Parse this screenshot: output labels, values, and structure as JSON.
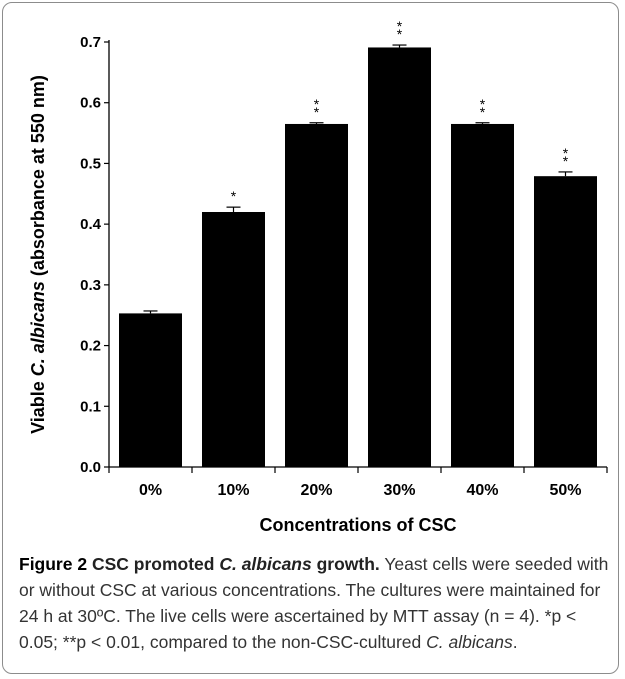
{
  "chart_data": {
    "type": "bar",
    "ylabel_parts": [
      "Viable ",
      "C. albicans",
      " (absorbance at 550 nm)"
    ],
    "xlabel": "Concentrations of CSC",
    "categories": [
      "0%",
      "10%",
      "20%",
      "30%",
      "40%",
      "50%"
    ],
    "values": [
      0.253,
      0.42,
      0.565,
      0.691,
      0.565,
      0.479
    ],
    "errors": [
      0.004,
      0.008,
      0.002,
      0.004,
      0.002,
      0.007
    ],
    "significance": [
      "",
      "*",
      "**",
      "**",
      "**",
      "**"
    ],
    "ylim": [
      0.0,
      0.7
    ],
    "yticks": [
      "0.0",
      "0.1",
      "0.2",
      "0.3",
      "0.4",
      "0.5",
      "0.6",
      "0.7"
    ],
    "grid": false,
    "bar_color": "#000000"
  },
  "caption": {
    "label": "Figure 2",
    "title_prefix": "CSC promoted ",
    "title_italic": "C. albicans",
    "title_suffix": " growth.",
    "body1": " Yeast cells were seeded with or without CSC at various concentrations. The cultures were maintained for 24 h at 30ºC. The live cells were ascertained by MTT assay (n = 4). *p < 0.05; **p < 0.01, compared to the non-CSC-cultured ",
    "body_italic": "C. albicans",
    "body2": "."
  }
}
